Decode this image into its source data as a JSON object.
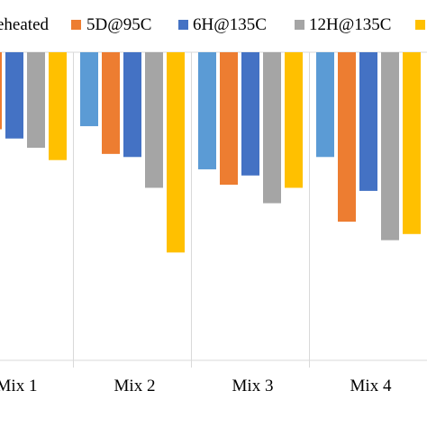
{
  "chart_data": {
    "type": "bar",
    "orientation": "vertical-downward",
    "categories": [
      "Mix 1",
      "Mix 2",
      "Mix 3",
      "Mix 4"
    ],
    "series": [
      {
        "name": "eheated",
        "color": "#5B9BD5",
        "values": [
          null,
          0.24,
          0.38,
          0.34
        ]
      },
      {
        "name": "5D@95C",
        "color": "#ED7D31",
        "values": [
          0.25,
          0.33,
          0.43,
          0.55
        ]
      },
      {
        "name": "6H@135C",
        "color": "#4472C4",
        "values": [
          0.28,
          0.34,
          0.4,
          0.45
        ]
      },
      {
        "name": "12H@135C",
        "color": "#A5A5A5",
        "values": [
          0.31,
          0.44,
          0.49,
          0.61
        ]
      },
      {
        "name": "",
        "color": "#FFC000",
        "values": [
          0.35,
          0.65,
          0.44,
          0.59
        ]
      }
    ],
    "ylim": [
      0,
      1
    ],
    "y_direction": "downward",
    "grid": false,
    "legend_position": "top",
    "title": "",
    "xlabel": "",
    "ylabel": ""
  }
}
